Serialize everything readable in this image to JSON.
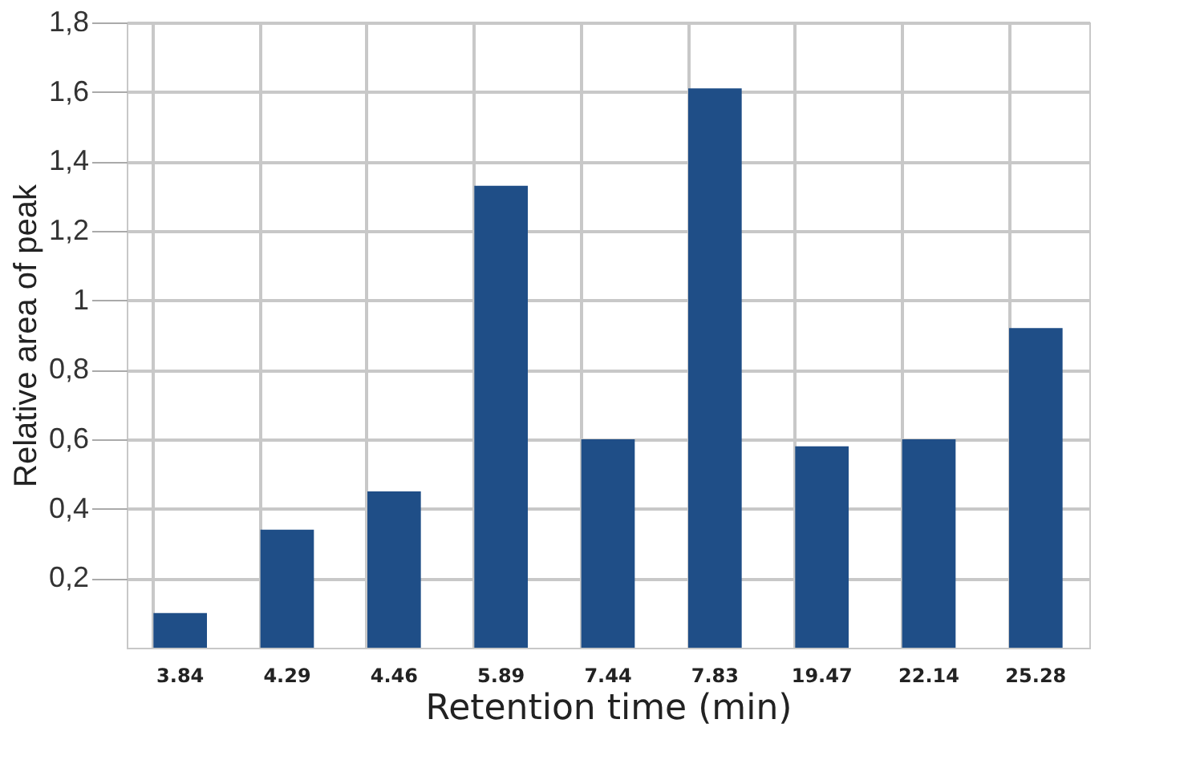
{
  "chart_data": {
    "type": "bar",
    "xlabel": "Retention time (min)",
    "ylabel": "Relative area of peak",
    "categories": [
      "3.84",
      "4.29",
      "4.46",
      "5.89",
      "7.44",
      "7.83",
      "19.47",
      "22.14",
      "25.28"
    ],
    "values": [
      0.1,
      0.34,
      0.45,
      1.33,
      0.6,
      1.61,
      0.58,
      0.6,
      0.92
    ],
    "color": "#1f4e87",
    "ylim": [
      0,
      1.8
    ],
    "yticks": [
      {
        "value": 0.2,
        "label": "0,2"
      },
      {
        "value": 0.4,
        "label": "0,4"
      },
      {
        "value": 0.6,
        "label": "0,6"
      },
      {
        "value": 0.8,
        "label": "0,8"
      },
      {
        "value": 1,
        "label": "1"
      },
      {
        "value": 1.2,
        "label": "1,2"
      },
      {
        "value": 1.4,
        "label": "1,4"
      },
      {
        "value": 1.6,
        "label": "1,6"
      },
      {
        "value": 1.8,
        "label": "1,8"
      }
    ],
    "grid": true
  }
}
